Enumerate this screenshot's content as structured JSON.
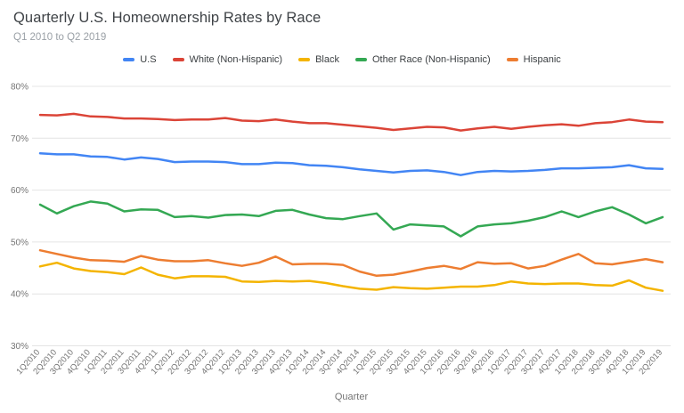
{
  "header": {
    "title": "Quarterly U.S. Homeownership Rates by Race",
    "subtitle": "Q1 2010 to Q2 2019"
  },
  "colors": {
    "us": "#4285F4",
    "white_non_hispanic": "#DB4437",
    "black": "#F4B400",
    "other_race_non_hispanic": "#34A853",
    "hispanic": "#ED7D31",
    "gridline": "#e4e4e4",
    "tick_text": "#757575"
  },
  "chart_data": {
    "type": "line",
    "title": "Quarterly U.S. Homeownership Rates by Race",
    "subtitle": "Q1 2010 to Q2 2019",
    "xlabel": "Quarter",
    "ylabel": "",
    "ylim": [
      30,
      80
    ],
    "grid": true,
    "legend_position": "top-center",
    "y_ticks": [
      80,
      70,
      60,
      50,
      40,
      30
    ],
    "y_tick_suffix": "%",
    "categories": [
      "1Q2010",
      "2Q2010",
      "3Q2010",
      "4Q2010",
      "1Q2011",
      "2Q2011",
      "3Q2011",
      "4Q2011",
      "1Q2012",
      "2Q2012",
      "3Q2012",
      "4Q2012",
      "1Q2013",
      "2Q2013",
      "3Q2013",
      "4Q2013",
      "1Q2014",
      "2Q2014",
      "3Q2014",
      "4Q2014",
      "1Q2015",
      "2Q2015",
      "3Q2015",
      "4Q2015",
      "1Q2016",
      "2Q2016",
      "3Q2016",
      "4Q2016",
      "1Q2017",
      "2Q2017",
      "3Q2017",
      "4Q2017",
      "1Q2018",
      "2Q2018",
      "3Q2018",
      "4Q2018",
      "1Q2019",
      "2Q2019"
    ],
    "series": [
      {
        "name": "U.S",
        "color": "#4285F4",
        "values": [
          67.1,
          66.9,
          66.9,
          66.5,
          66.4,
          65.9,
          66.3,
          66.0,
          65.4,
          65.5,
          65.5,
          65.4,
          65.0,
          65.0,
          65.3,
          65.2,
          64.8,
          64.7,
          64.4,
          64.0,
          63.7,
          63.4,
          63.7,
          63.8,
          63.5,
          62.9,
          63.5,
          63.7,
          63.6,
          63.7,
          63.9,
          64.2,
          64.2,
          64.3,
          64.4,
          64.8,
          64.2,
          64.1
        ]
      },
      {
        "name": "White (Non-Hispanic)",
        "color": "#DB4437",
        "values": [
          74.5,
          74.4,
          74.7,
          74.2,
          74.1,
          73.8,
          73.8,
          73.7,
          73.5,
          73.6,
          73.6,
          73.9,
          73.4,
          73.3,
          73.6,
          73.2,
          72.9,
          72.9,
          72.6,
          72.3,
          72.0,
          71.6,
          71.9,
          72.2,
          72.1,
          71.5,
          71.9,
          72.2,
          71.8,
          72.2,
          72.5,
          72.7,
          72.4,
          72.9,
          73.1,
          73.6,
          73.2,
          73.1
        ]
      },
      {
        "name": "Black",
        "color": "#F4B400",
        "values": [
          45.3,
          46.0,
          44.9,
          44.4,
          44.2,
          43.8,
          45.1,
          43.7,
          43.0,
          43.4,
          43.4,
          43.3,
          42.4,
          42.3,
          42.5,
          42.4,
          42.5,
          42.1,
          41.5,
          41.0,
          40.8,
          41.3,
          41.1,
          41.0,
          41.2,
          41.4,
          41.4,
          41.7,
          42.4,
          42.0,
          41.9,
          42.0,
          42.0,
          41.7,
          41.6,
          42.6,
          41.2,
          40.6
        ]
      },
      {
        "name": "Other Race (Non-Hispanic)",
        "color": "#34A853",
        "values": [
          57.2,
          55.5,
          56.9,
          57.8,
          57.4,
          55.9,
          56.3,
          56.2,
          54.8,
          55.0,
          54.7,
          55.2,
          55.3,
          55.0,
          56.0,
          56.2,
          55.3,
          54.6,
          54.4,
          55.0,
          55.5,
          52.4,
          53.4,
          53.2,
          53.0,
          51.1,
          53.0,
          53.4,
          53.6,
          54.1,
          54.8,
          55.9,
          54.8,
          55.9,
          56.7,
          55.3,
          53.6,
          54.8
        ]
      },
      {
        "name": "Hispanic",
        "color": "#ED7D31",
        "values": [
          48.4,
          47.7,
          47.0,
          46.5,
          46.4,
          46.2,
          47.3,
          46.6,
          46.3,
          46.3,
          46.5,
          45.9,
          45.4,
          46.0,
          47.2,
          45.7,
          45.8,
          45.8,
          45.6,
          44.3,
          43.5,
          43.7,
          44.3,
          45.0,
          45.4,
          44.8,
          46.1,
          45.8,
          45.9,
          44.9,
          45.4,
          46.6,
          47.7,
          45.9,
          45.7,
          46.2,
          46.7,
          46.1
        ]
      }
    ]
  }
}
